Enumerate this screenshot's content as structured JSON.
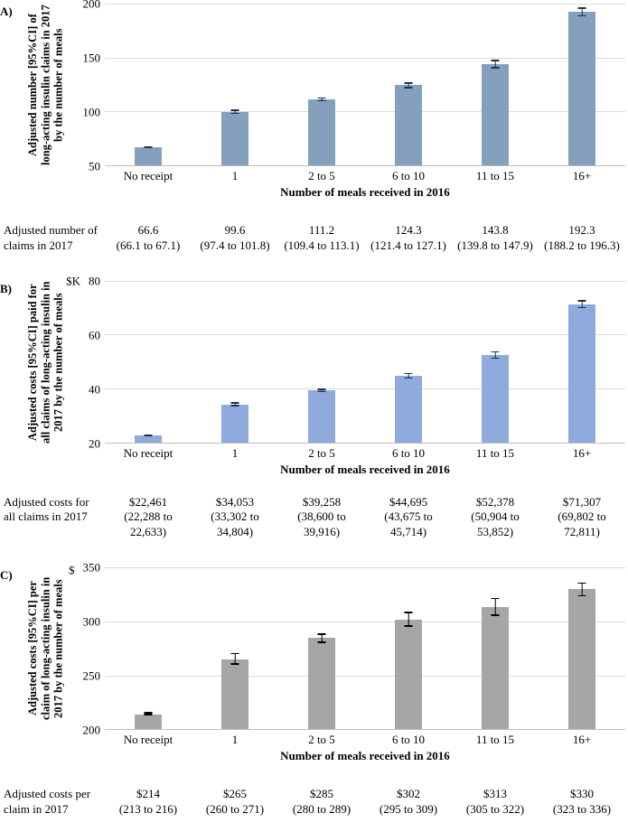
{
  "chart_data": [
    {
      "type": "bar",
      "panel_label": "A)",
      "ylabel": "Adjusted number [95%CI] of long-acting insulin claims in 2017 by the number of meals",
      "xlabel": "Number of meals received in 2016",
      "unit": "",
      "categories": [
        "No receipt",
        "1",
        "2 to 5",
        "6 to 10",
        "11 to 15",
        "16+"
      ],
      "values": [
        66.6,
        99.6,
        111.2,
        124.3,
        143.8,
        192.3
      ],
      "ci_low": [
        66.1,
        97.4,
        109.4,
        121.4,
        139.8,
        188.2
      ],
      "ci_high": [
        67.1,
        101.8,
        113.1,
        127.1,
        147.9,
        196.3
      ],
      "ylim": [
        50,
        200
      ],
      "yticks": [
        50,
        100,
        150,
        200
      ],
      "grid": true,
      "bar_color": "#84a0bd",
      "error_color": "#1f3050",
      "table": {
        "row_header": "Adjusted number of claims in 2017",
        "cells": [
          [
            "66.6",
            "(66.1 to 67.1)"
          ],
          [
            "99.6",
            "(97.4 to 101.8)"
          ],
          [
            "111.2",
            "(109.4 to 113.1)"
          ],
          [
            "124.3",
            "(121.4 to 127.1)"
          ],
          [
            "143.8",
            "(139.8 to 147.9)"
          ],
          [
            "192.3",
            "(188.2 to 196.3)"
          ]
        ]
      }
    },
    {
      "type": "bar",
      "panel_label": "B)",
      "ylabel": "Adjusted costs [95%CI] paid for all claims of long-acting insulin in 2017 by the number of meals",
      "xlabel": "Number of meals received in 2016",
      "unit": "$K",
      "categories": [
        "No receipt",
        "1",
        "2 to 5",
        "6 to 10",
        "11 to 15",
        "16+"
      ],
      "values": [
        22.461,
        34.053,
        39.258,
        44.695,
        52.378,
        71.307
      ],
      "ci_low": [
        22.288,
        33.302,
        38.6,
        43.675,
        50.904,
        69.802
      ],
      "ci_high": [
        22.633,
        34.804,
        39.916,
        45.714,
        53.852,
        72.811
      ],
      "ylim": [
        20,
        80
      ],
      "yticks": [
        20,
        40,
        60,
        80
      ],
      "grid": true,
      "bar_color": "#8faadc",
      "error_color": "#1f3050",
      "table": {
        "row_header": "Adjusted costs for all claims in 2017",
        "cells": [
          [
            "$22,461",
            "(22,288 to",
            "22,633)"
          ],
          [
            "$34,053",
            "(33,302 to",
            "34,804)"
          ],
          [
            "$39,258",
            "(38,600 to",
            "39,916)"
          ],
          [
            "$44,695",
            "(43,675 to",
            "45,714)"
          ],
          [
            "$52,378",
            "(50,904 to",
            "53,852)"
          ],
          [
            "$71,307",
            "(69,802 to",
            "72,811)"
          ]
        ]
      }
    },
    {
      "type": "bar",
      "panel_label": "C)",
      "ylabel": "Adjusted costs [95%CI] per claim of long-acting insulin in 2017 by the number of meals",
      "xlabel": "Number of meals received in 2016",
      "unit": "$",
      "categories": [
        "No receipt",
        "1",
        "2 to 5",
        "6 to 10",
        "11 to 15",
        "16+"
      ],
      "values": [
        214,
        265,
        285,
        302,
        313,
        330
      ],
      "ci_low": [
        213,
        260,
        280,
        295,
        305,
        323
      ],
      "ci_high": [
        216,
        271,
        289,
        309,
        322,
        336
      ],
      "ylim": [
        200,
        350
      ],
      "yticks": [
        200,
        250,
        300,
        350
      ],
      "grid": true,
      "bar_color": "#a6a6a6",
      "error_color": "#000000",
      "table": {
        "row_header": "Adjusted costs per claim in 2017",
        "cells": [
          [
            "$214",
            "(213 to 216)"
          ],
          [
            "$265",
            "(260 to 271)"
          ],
          [
            "$285",
            "(280 to 289)"
          ],
          [
            "$302",
            "(295 to 309)"
          ],
          [
            "$313",
            "(305 to 322)"
          ],
          [
            "$330",
            "(323 to 336)"
          ]
        ]
      }
    }
  ]
}
